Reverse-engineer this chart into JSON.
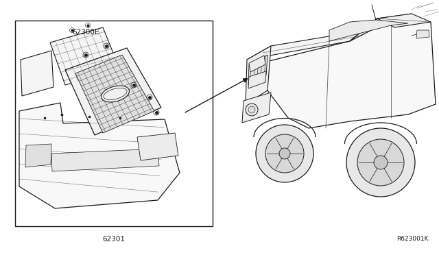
{
  "bg_color": "#ffffff",
  "line_color": "#1a1a1a",
  "label_62300E": "62300E",
  "label_62301": "62301",
  "label_ref": "R623001K",
  "fig_width": 6.4,
  "fig_height": 3.72,
  "dpi": 100,
  "font_size_labels": 7.5,
  "font_size_ref": 6.5
}
